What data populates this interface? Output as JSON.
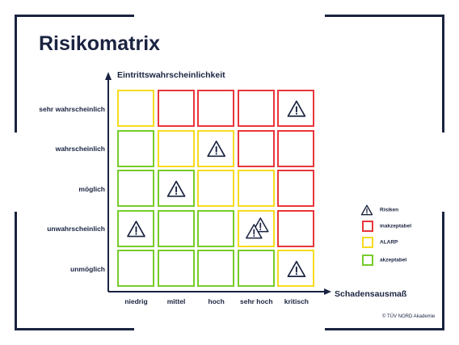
{
  "title": "Risikomatrix",
  "y_axis_title": "Eintrittswahrscheinlichkeit",
  "x_axis_title": "Schadensausmaß",
  "y_categories": [
    "sehr wahrscheinlich",
    "wahrscheinlich",
    "möglich",
    "unwahrscheinlich",
    "unmöglich"
  ],
  "x_categories": [
    "niedrig",
    "mittel",
    "hoch",
    "sehr hoch",
    "kritisch"
  ],
  "colors": {
    "inakzeptabel": "#e8363c",
    "alarp": "#f6dc20",
    "akzeptabel": "#77cc2a",
    "ink": "#1a2340"
  },
  "matrix": [
    [
      "alarp",
      "inakzeptabel",
      "inakzeptabel",
      "inakzeptabel",
      "inakzeptabel"
    ],
    [
      "akzeptabel",
      "alarp",
      "alarp",
      "inakzeptabel",
      "inakzeptabel"
    ],
    [
      "akzeptabel",
      "akzeptabel",
      "alarp",
      "alarp",
      "inakzeptabel"
    ],
    [
      "akzeptabel",
      "akzeptabel",
      "akzeptabel",
      "alarp",
      "inakzeptabel"
    ],
    [
      "akzeptabel",
      "akzeptabel",
      "akzeptabel",
      "akzeptabel",
      "alarp"
    ]
  ],
  "risks": [
    {
      "row": 0,
      "col": 4,
      "count": 1
    },
    {
      "row": 1,
      "col": 2,
      "count": 1
    },
    {
      "row": 2,
      "col": 1,
      "count": 1
    },
    {
      "row": 3,
      "col": 0,
      "count": 1
    },
    {
      "row": 3,
      "col": 3,
      "count": 2
    },
    {
      "row": 4,
      "col": 4,
      "count": 1
    }
  ],
  "legend": [
    {
      "key": "risiken",
      "label": "Risiken",
      "type": "icon"
    },
    {
      "key": "inakzeptabel",
      "label": "inakzeptabel",
      "type": "box"
    },
    {
      "key": "alarp",
      "label": "ALARP",
      "type": "box"
    },
    {
      "key": "akzeptabel",
      "label": "akzeptabel",
      "type": "box"
    }
  ],
  "copyright": "© TÜV NORD Akademie"
}
